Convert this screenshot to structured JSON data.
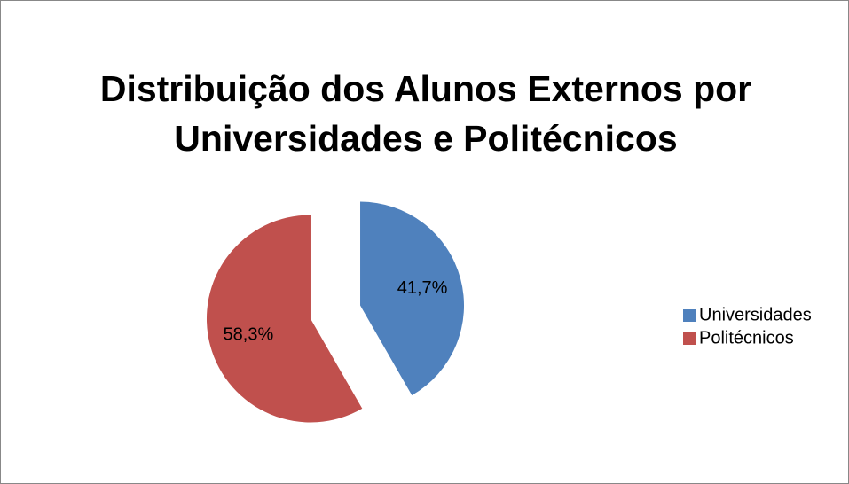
{
  "chart_data": {
    "type": "pie",
    "title": "Distribuição dos Alunos Externos por Universidades e Politécnicos",
    "categories": [
      "Universidades",
      "Politécnicos"
    ],
    "values": [
      41.7,
      58.3
    ],
    "value_labels": [
      "41,7%",
      "58,3%"
    ],
    "colors": [
      "#4f81bd",
      "#c0504d"
    ],
    "exploded": true,
    "legend": "right"
  }
}
